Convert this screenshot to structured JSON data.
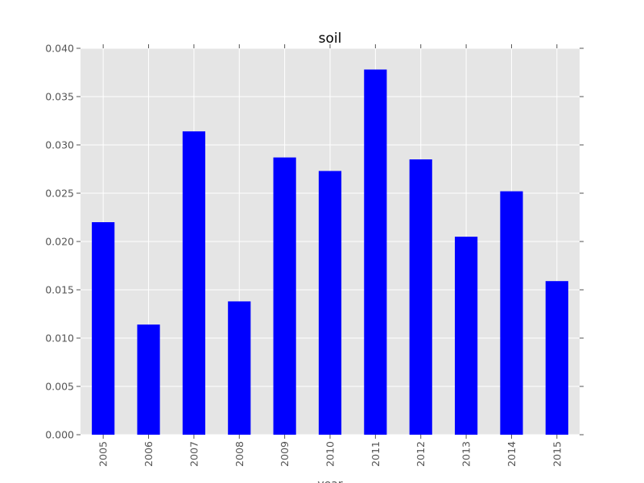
{
  "chart_data": {
    "type": "bar",
    "title": "soil",
    "xlabel": "year",
    "ylabel": "",
    "categories": [
      "2005",
      "2006",
      "2007",
      "2008",
      "2009",
      "2010",
      "2011",
      "2012",
      "2013",
      "2014",
      "2015"
    ],
    "values": [
      0.022,
      0.0114,
      0.0314,
      0.0138,
      0.0287,
      0.0273,
      0.0378,
      0.0285,
      0.0205,
      0.0252,
      0.0159
    ],
    "ylim": [
      0,
      0.04
    ],
    "yticks": [
      "0.000",
      "0.005",
      "0.010",
      "0.015",
      "0.020",
      "0.025",
      "0.030",
      "0.035",
      "0.040"
    ],
    "bar_color": "#0000ff",
    "background_color": "#e5e5e5",
    "grid_color": "#ffffff",
    "grid": true,
    "legend": "none"
  }
}
